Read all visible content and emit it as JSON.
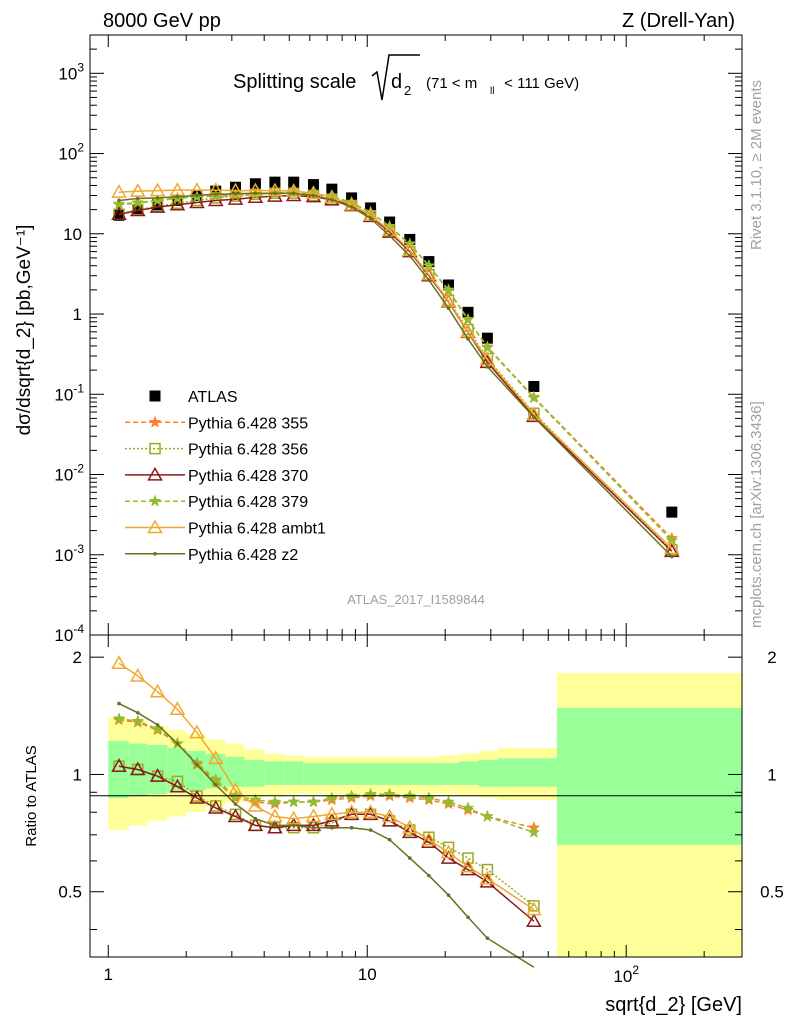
{
  "header": {
    "left": "8000 GeV pp",
    "right": "Z (Drell-Yan)"
  },
  "side_labels": {
    "rivet": "Rivet 3.1.10, ≥ 2M events",
    "arxiv": "mcplots.cern.ch [arXiv:1306.3436]"
  },
  "plot_title": {
    "main": "Splitting scale",
    "sub": "d",
    "sub_index": "2",
    "range": "(71 < m",
    "range_index": "ll",
    "range_end": " < 111 GeV)"
  },
  "analysis_tag": "ATLAS_2017_I1589844",
  "colors": {
    "ATLAS": "#000000",
    "p355": "#ff7f27",
    "p356": "#9aaa22",
    "p370": "#8b1a1a",
    "p379": "#8fbf2f",
    "ambt1": "#f0a830",
    "z2": "#6b7020",
    "band_inner": "#99ff99",
    "band_outer": "#ffff99"
  },
  "chart_data": [
    {
      "type": "scatter",
      "panel": "main",
      "xlabel": "sqrt{d_2} [GeV]",
      "ylabel": "dσ/dsqrt{d_2} [pb,GeV⁻¹]",
      "xscale": "log",
      "yscale": "log",
      "xlim": [
        0.85,
        280
      ],
      "ylim": [
        0.0001,
        3000
      ],
      "y_ticks": [
        "10^{-4}",
        "10^{-3}",
        "10^{-2}",
        "10^{-1}",
        "1",
        "10",
        "10^{2}",
        "10^{3}"
      ],
      "legend": {
        "position": "bottom-left",
        "entries": [
          "ATLAS",
          "Pythia 6.428 355",
          "Pythia 6.428 356",
          "Pythia 6.428 370",
          "Pythia 6.428 379",
          "Pythia 6.428 ambt1",
          "Pythia 6.428 z2"
        ]
      },
      "x": [
        1.1,
        1.3,
        1.55,
        1.85,
        2.2,
        2.6,
        3.1,
        3.7,
        4.4,
        5.2,
        6.2,
        7.3,
        8.7,
        10.3,
        12.2,
        14.6,
        17.3,
        20.6,
        24.5,
        29.1,
        44,
        150
      ],
      "series": [
        {
          "name": "ATLAS",
          "marker": "square",
          "values": [
            17,
            20,
            23,
            26,
            30,
            34,
            38,
            42,
            44,
            44,
            41,
            36,
            28,
            21,
            14,
            8.5,
            4.5,
            2.3,
            1.05,
            0.5,
            0.125,
            0.0034
          ]
        },
        {
          "name": "Pythia 6.428 355",
          "marker": "star",
          "values": [
            23,
            24,
            26,
            28,
            29,
            29.5,
            29.5,
            31,
            32,
            33,
            31,
            29,
            24,
            18.5,
            12.2,
            7.4,
            4.0,
            1.95,
            0.85,
            0.39,
            0.092,
            0.0016
          ]
        },
        {
          "name": "Pythia 6.428 356",
          "marker": "open-square",
          "values": [
            17.5,
            20,
            22,
            24,
            26,
            28,
            29.5,
            31,
            32,
            32,
            30,
            27,
            22.5,
            16.5,
            10.5,
            6.0,
            3.1,
            1.48,
            0.64,
            0.28,
            0.058,
            0.00115
          ]
        },
        {
          "name": "Pythia 6.428 370",
          "marker": "open-triangle",
          "values": [
            17.5,
            19.5,
            21.5,
            23,
            24.5,
            26,
            27,
            28.5,
            29.5,
            30,
            29,
            26.5,
            22.5,
            16.5,
            10.5,
            6.0,
            3.0,
            1.42,
            0.59,
            0.25,
            0.053,
            0.0011
          ]
        },
        {
          "name": "Pythia 6.428 379",
          "marker": "star",
          "values": [
            23.5,
            24.5,
            26,
            27.5,
            29,
            30,
            30.5,
            31,
            32,
            33,
            31.5,
            29.5,
            24.5,
            18.5,
            12.4,
            7.5,
            4.0,
            2.0,
            0.86,
            0.38,
            0.09,
            0.0015
          ]
        },
        {
          "name": "Pythia 6.428 ambt1",
          "marker": "open-triangle",
          "values": [
            33,
            34,
            34.5,
            35,
            35,
            35,
            34.5,
            34.5,
            34.5,
            34,
            32,
            28.5,
            23,
            17,
            11,
            6.2,
            3.1,
            1.45,
            0.6,
            0.27,
            0.056,
            0.0012
          ]
        },
        {
          "name": "Pythia 6.428 z2",
          "marker": "dot",
          "values": [
            26,
            27.5,
            28,
            29,
            30,
            31,
            31.5,
            32,
            32,
            32,
            30,
            26.5,
            21.5,
            15.5,
            9.5,
            5.3,
            2.65,
            1.18,
            0.49,
            0.22,
            0.052,
            0.00095
          ]
        }
      ]
    },
    {
      "type": "line",
      "panel": "ratio",
      "ylabel": "Ratio to ATLAS",
      "xlabel": "sqrt{d_2} [GeV]",
      "xscale": "log",
      "xlim": [
        0.85,
        280
      ],
      "ylim": [
        0.34,
        2.28
      ],
      "y_ticks": [
        "0.5",
        "1",
        "2"
      ],
      "x_ticks": [
        "1",
        "10",
        "10^{2}"
      ],
      "bands": {
        "edges": [
          1.0,
          1.2,
          1.42,
          1.69,
          2.0,
          2.38,
          2.83,
          3.36,
          4.0,
          4.76,
          5.66,
          6.73,
          8.0,
          9.5,
          11.3,
          13.5,
          16.0,
          19.0,
          22.6,
          26.9,
          32.0,
          54.0,
          280
        ],
        "inner": [
          [
            0.87,
            1.22
          ],
          [
            0.88,
            1.2
          ],
          [
            0.89,
            1.19
          ],
          [
            0.9,
            1.17
          ],
          [
            0.91,
            1.15
          ],
          [
            0.92,
            1.13
          ],
          [
            0.93,
            1.11
          ],
          [
            0.93,
            1.09
          ],
          [
            0.94,
            1.08
          ],
          [
            0.94,
            1.08
          ],
          [
            0.94,
            1.07
          ],
          [
            0.94,
            1.07
          ],
          [
            0.94,
            1.07
          ],
          [
            0.94,
            1.07
          ],
          [
            0.94,
            1.07
          ],
          [
            0.94,
            1.07
          ],
          [
            0.94,
            1.07
          ],
          [
            0.94,
            1.07
          ],
          [
            0.94,
            1.08
          ],
          [
            0.93,
            1.09
          ],
          [
            0.93,
            1.1
          ],
          [
            0.66,
            1.48
          ]
        ],
        "outer": [
          [
            0.72,
            1.4
          ],
          [
            0.74,
            1.37
          ],
          [
            0.76,
            1.33
          ],
          [
            0.78,
            1.3
          ],
          [
            0.8,
            1.27
          ],
          [
            0.83,
            1.23
          ],
          [
            0.85,
            1.2
          ],
          [
            0.87,
            1.16
          ],
          [
            0.88,
            1.13
          ],
          [
            0.89,
            1.12
          ],
          [
            0.89,
            1.11
          ],
          [
            0.89,
            1.11
          ],
          [
            0.89,
            1.11
          ],
          [
            0.89,
            1.11
          ],
          [
            0.89,
            1.11
          ],
          [
            0.89,
            1.11
          ],
          [
            0.89,
            1.11
          ],
          [
            0.89,
            1.12
          ],
          [
            0.88,
            1.13
          ],
          [
            0.87,
            1.15
          ],
          [
            0.86,
            1.17
          ],
          [
            0.34,
            1.82
          ]
        ]
      },
      "x": [
        1.1,
        1.3,
        1.55,
        1.85,
        2.2,
        2.6,
        3.1,
        3.7,
        4.4,
        5.2,
        6.2,
        7.3,
        8.7,
        10.3,
        12.2,
        14.6,
        17.3,
        20.6,
        24.5,
        29.1,
        44
      ],
      "series": [
        {
          "name": "Pythia 6.428 355",
          "values": [
            1.38,
            1.36,
            1.3,
            1.2,
            1.06,
            0.96,
            0.87,
            0.85,
            0.84,
            0.85,
            0.85,
            0.86,
            0.87,
            0.88,
            0.88,
            0.87,
            0.86,
            0.84,
            0.81,
            0.78,
            0.73
          ]
        },
        {
          "name": "Pythia 6.428 356",
          "values": [
            1.05,
            1.03,
            0.99,
            0.96,
            0.88,
            0.83,
            0.79,
            0.74,
            0.73,
            0.73,
            0.73,
            0.75,
            0.79,
            0.79,
            0.76,
            0.72,
            0.69,
            0.65,
            0.61,
            0.57,
            0.46
          ]
        },
        {
          "name": "Pythia 6.428 370",
          "values": [
            1.05,
            1.03,
            0.99,
            0.93,
            0.87,
            0.82,
            0.78,
            0.74,
            0.73,
            0.74,
            0.74,
            0.76,
            0.79,
            0.79,
            0.76,
            0.71,
            0.67,
            0.61,
            0.57,
            0.53,
            0.42
          ]
        },
        {
          "name": "Pythia 6.428 379",
          "values": [
            1.39,
            1.37,
            1.31,
            1.2,
            1.07,
            0.97,
            0.88,
            0.86,
            0.85,
            0.85,
            0.85,
            0.87,
            0.88,
            0.89,
            0.89,
            0.88,
            0.87,
            0.85,
            0.82,
            0.78,
            0.71
          ]
        },
        {
          "name": "Pythia 6.428 ambt1",
          "values": [
            1.93,
            1.79,
            1.63,
            1.47,
            1.28,
            1.1,
            0.91,
            0.83,
            0.78,
            0.77,
            0.78,
            0.79,
            0.8,
            0.8,
            0.78,
            0.73,
            0.68,
            0.63,
            0.58,
            0.54,
            0.45
          ]
        },
        {
          "name": "Pythia 6.428 z2",
          "values": [
            1.52,
            1.44,
            1.34,
            1.2,
            1.06,
            0.94,
            0.84,
            0.77,
            0.74,
            0.74,
            0.73,
            0.73,
            0.73,
            0.72,
            0.68,
            0.61,
            0.55,
            0.49,
            0.43,
            0.38,
            0.32
          ]
        }
      ]
    }
  ]
}
